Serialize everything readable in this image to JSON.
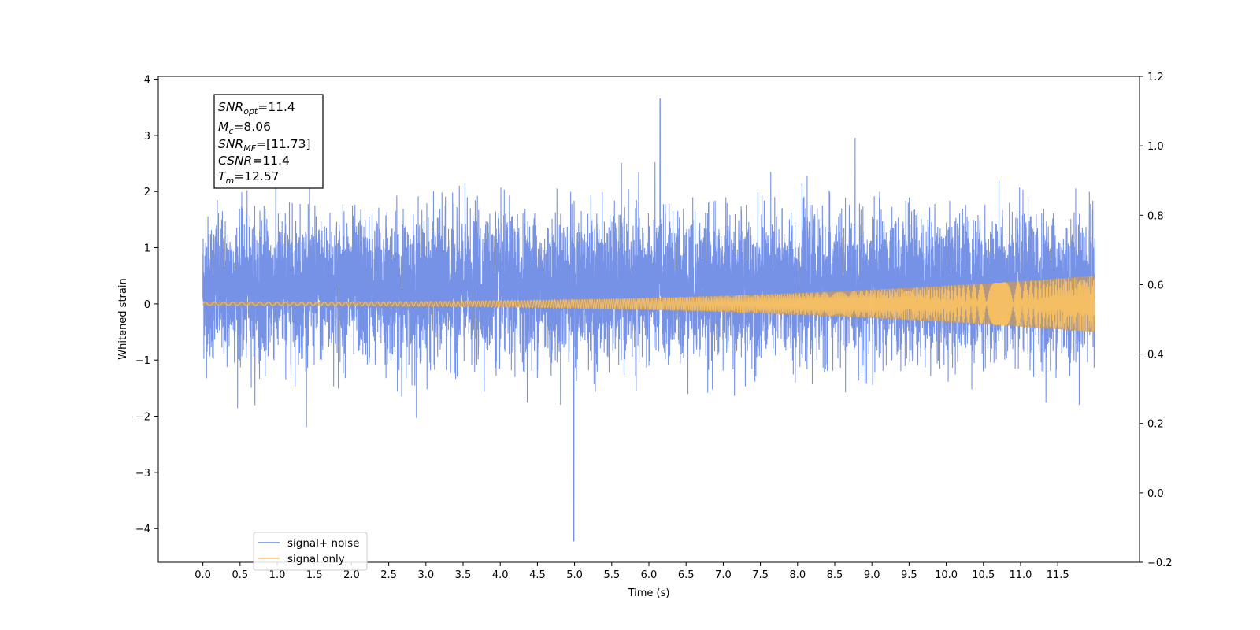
{
  "chart_data": {
    "type": "line",
    "xlabel": "Time (s)",
    "ylabel": "Whitened strain",
    "x_ticks": [
      "0.0",
      "0.5",
      "1.0",
      "1.5",
      "2.0",
      "2.5",
      "3.0",
      "3.5",
      "4.0",
      "4.5",
      "5.0",
      "5.5",
      "6.0",
      "6.5",
      "7.0",
      "7.5",
      "8.0",
      "8.5",
      "9.0",
      "9.5",
      "10.0",
      "10.5",
      "11.0",
      "11.5"
    ],
    "x_tick_values": [
      0.0,
      0.5,
      1.0,
      1.5,
      2.0,
      2.5,
      3.0,
      3.5,
      4.0,
      4.5,
      5.0,
      5.5,
      6.0,
      6.5,
      7.0,
      7.5,
      8.0,
      8.5,
      9.0,
      9.5,
      10.0,
      10.5,
      11.0,
      11.5
    ],
    "xlim": [
      -0.6,
      12.6
    ],
    "x_data_range": [
      0.0,
      12.0
    ],
    "y_left_ticks": [
      "−4",
      "−3",
      "−2",
      "−1",
      "0",
      "1",
      "2",
      "3",
      "4"
    ],
    "y_left_tick_values": [
      -4,
      -3,
      -2,
      -1,
      0,
      1,
      2,
      3,
      4
    ],
    "ylim_left": [
      -4.6,
      4.05
    ],
    "y_right_ticks": [
      "−0.2",
      "0.0",
      "0.2",
      "0.4",
      "0.6",
      "0.8",
      "1.0",
      "1.2"
    ],
    "y_right_tick_values": [
      -0.2,
      0.0,
      0.2,
      0.4,
      0.6,
      0.8,
      1.0,
      1.2
    ],
    "ylim_right": [
      -0.2,
      1.2
    ],
    "series": [
      {
        "name": "signal+ noise",
        "color": "#6f8ce6",
        "description_values": {
          "typical_range": [
            -2.6,
            3.2
          ],
          "max": 3.65,
          "max_at": 6.15,
          "min": -4.22,
          "min_at": 4.99
        }
      },
      {
        "name": "signal only",
        "color": "#fbc262",
        "envelope": {
          "start_amplitude": 0.03,
          "end_amplitude": 0.5,
          "start_time": 0.0,
          "end_time": 12.0
        }
      }
    ],
    "annotation_lines": [
      {
        "base": "SNR",
        "sub": "opt",
        "value": "=11.4"
      },
      {
        "base": "M",
        "sub": "c",
        "value": "=8.06"
      },
      {
        "base": "SNR",
        "sub": "MF",
        "value": "=[11.73]"
      },
      {
        "base": "CSNR",
        "sub": "",
        "value": "=11.4"
      },
      {
        "base": "T",
        "sub": "m",
        "value": "=12.57"
      }
    ],
    "legend": {
      "location": "lower-left",
      "entries": [
        "signal+ noise",
        "signal only"
      ]
    },
    "grid": false
  }
}
